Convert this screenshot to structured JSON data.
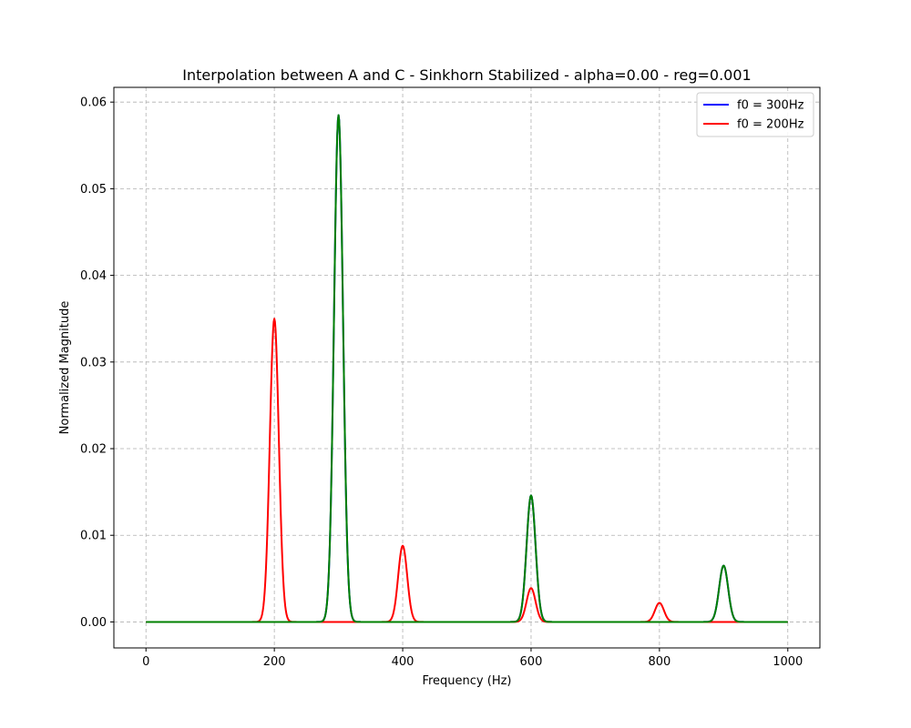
{
  "chart_data": {
    "type": "line",
    "title": "Interpolation between A and C - Sinkhorn Stabilized - alpha=0.00 - reg=0.001",
    "xlabel": "Frequency (Hz)",
    "ylabel": "Normalized Magnitude",
    "xlim": [
      -50,
      1050
    ],
    "ylim": [
      -0.003,
      0.0617
    ],
    "xticks": [
      0,
      200,
      400,
      600,
      800,
      1000
    ],
    "xtick_labels": [
      "0",
      "200",
      "400",
      "600",
      "800",
      "1000"
    ],
    "yticks": [
      0.0,
      0.01,
      0.02,
      0.03,
      0.04,
      0.05,
      0.06
    ],
    "ytick_labels": [
      "0.00",
      "0.01",
      "0.02",
      "0.03",
      "0.04",
      "0.05",
      "0.06"
    ],
    "grid": true,
    "legend_position": "upper right",
    "series": [
      {
        "name": "f0 = 300Hz",
        "color": "#0000ff",
        "in_legend": true,
        "peaks": [
          {
            "x": 300,
            "y": 0.0585
          },
          {
            "x": 600,
            "y": 0.0146
          },
          {
            "x": 900,
            "y": 0.0065
          }
        ]
      },
      {
        "name": "f0 = 200Hz",
        "color": "#ff0000",
        "in_legend": true,
        "peaks": [
          {
            "x": 200,
            "y": 0.035
          },
          {
            "x": 400,
            "y": 0.0088
          },
          {
            "x": 600,
            "y": 0.0039
          },
          {
            "x": 800,
            "y": 0.0022
          }
        ]
      },
      {
        "name": "",
        "color": "#008000",
        "in_legend": false,
        "peaks": [
          {
            "x": 300,
            "y": 0.0585
          },
          {
            "x": 600,
            "y": 0.0146
          },
          {
            "x": 900,
            "y": 0.0065
          }
        ]
      }
    ]
  }
}
